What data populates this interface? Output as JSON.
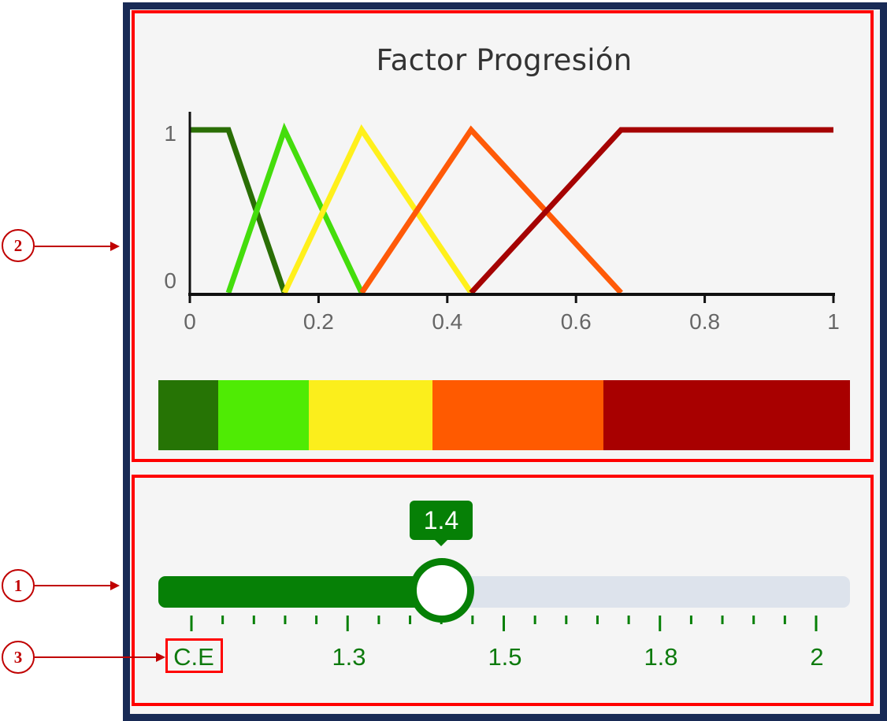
{
  "title": "Factor Progresión",
  "colors": {
    "frame": "#182a55",
    "annotation_red": "#ff0000",
    "slider_green": "#068006",
    "track_gray": "#dde3ec",
    "label_green": "#0d7a0d"
  },
  "callouts": [
    "1",
    "2",
    "3"
  ],
  "chart_data": {
    "type": "line",
    "title": "Factor Progresión",
    "xlim": [
      0,
      1
    ],
    "ylim": [
      0,
      1
    ],
    "x_ticks": [
      "0",
      "0.2",
      "0.4",
      "0.6",
      "0.8",
      "1"
    ],
    "y_ticks": [
      "0",
      "1"
    ],
    "xlabel": "",
    "ylabel": "",
    "grid": false,
    "series": [
      {
        "color": "#2a6e05",
        "points": [
          [
            0,
            1
          ],
          [
            0.06,
            1
          ],
          [
            0.147,
            0
          ]
        ]
      },
      {
        "color": "#44dd0c",
        "points": [
          [
            0.06,
            0
          ],
          [
            0.147,
            1
          ],
          [
            0.267,
            0
          ]
        ]
      },
      {
        "color": "#fff01c",
        "points": [
          [
            0.147,
            0
          ],
          [
            0.267,
            1
          ],
          [
            0.437,
            0
          ]
        ]
      },
      {
        "color": "#ff5a08",
        "points": [
          [
            0.267,
            0
          ],
          [
            0.437,
            1
          ],
          [
            0.67,
            0
          ]
        ]
      },
      {
        "color": "#a50303",
        "points": [
          [
            0.437,
            0
          ],
          [
            0.67,
            1
          ],
          [
            1,
            1
          ]
        ]
      }
    ]
  },
  "color_bar": [
    {
      "color": "#267405",
      "fraction": 0.086
    },
    {
      "color": "#4feb04",
      "fraction": 0.132
    },
    {
      "color": "#fbee1c",
      "fraction": 0.178
    },
    {
      "color": "#ff5a00",
      "fraction": 0.248
    },
    {
      "color": "#a80000",
      "fraction": 0.356
    }
  ],
  "slider": {
    "value": "1.4",
    "fill_fraction": 0.41,
    "fill_color": "#068006",
    "tick_labels": [
      "C.E",
      "1.3",
      "1.5",
      "1.8",
      "2"
    ],
    "major_ticks": 5,
    "minor_ticks_between": 4
  }
}
